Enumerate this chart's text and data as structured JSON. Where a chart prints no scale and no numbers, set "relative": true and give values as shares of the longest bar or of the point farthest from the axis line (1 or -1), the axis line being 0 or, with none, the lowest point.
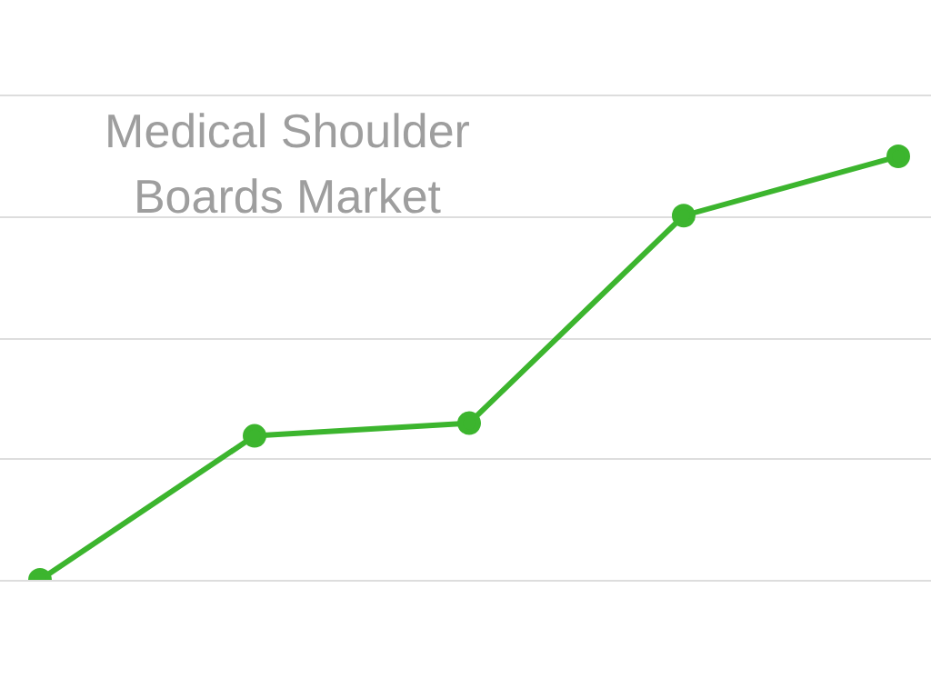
{
  "chart_data": {
    "type": "line",
    "title": "Medical Shoulder Boards Market",
    "categories": [
      null,
      null,
      null,
      null,
      null
    ],
    "relative": true,
    "series": [
      {
        "color": "#3cb52e",
        "values": [
          0,
          0.34,
          0.37,
          0.86,
          1
        ]
      }
    ],
    "marker": "circle",
    "grid": "y",
    "legend": false
  }
}
